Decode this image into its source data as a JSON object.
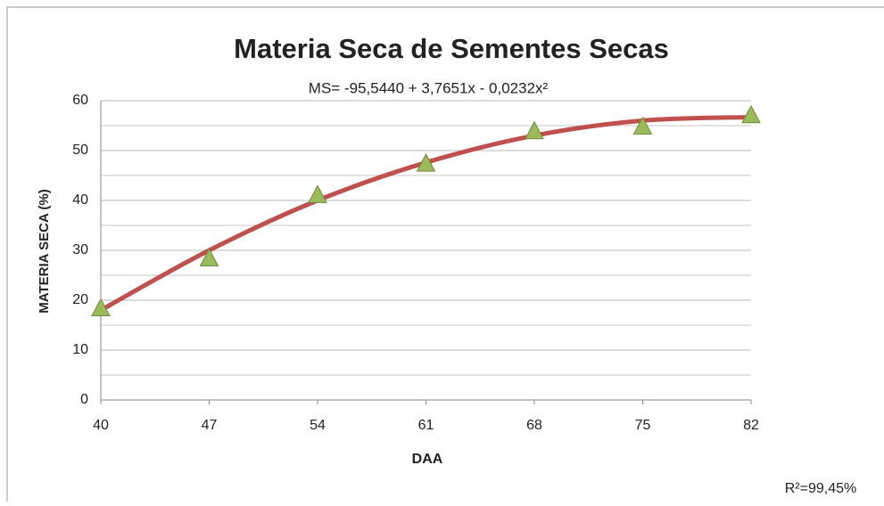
{
  "chart_data": {
    "type": "scatter",
    "title": "Materia Seca de Sementes Secas",
    "annotation": "MS=  -95,5440 + 3,7651x - 0,0232x²",
    "r_squared_label": "R²=99,45%",
    "x_label": "DAA",
    "y_label": "MATERIA SECA (%)",
    "x": [
      40,
      47,
      54,
      61,
      68,
      75,
      82
    ],
    "series": [
      {
        "kind": "points",
        "color": "#9bbb59",
        "values": [
          18.3,
          28.3,
          41,
          47.3,
          53.8,
          54.7,
          57
        ]
      },
      {
        "kind": "trend",
        "color": "#c0504d",
        "values": [
          18,
          30,
          40,
          47.6,
          53,
          56,
          56.7
        ]
      }
    ],
    "xlim": [
      40,
      82
    ],
    "xticks": [
      40,
      47,
      54,
      61,
      68,
      75,
      82
    ],
    "ylim": [
      0,
      60
    ],
    "yticks": [
      0,
      10,
      20,
      30,
      40,
      50,
      60
    ],
    "y_minor_gridlines": [
      5,
      15,
      25,
      35,
      45,
      55
    ],
    "grid": true
  }
}
